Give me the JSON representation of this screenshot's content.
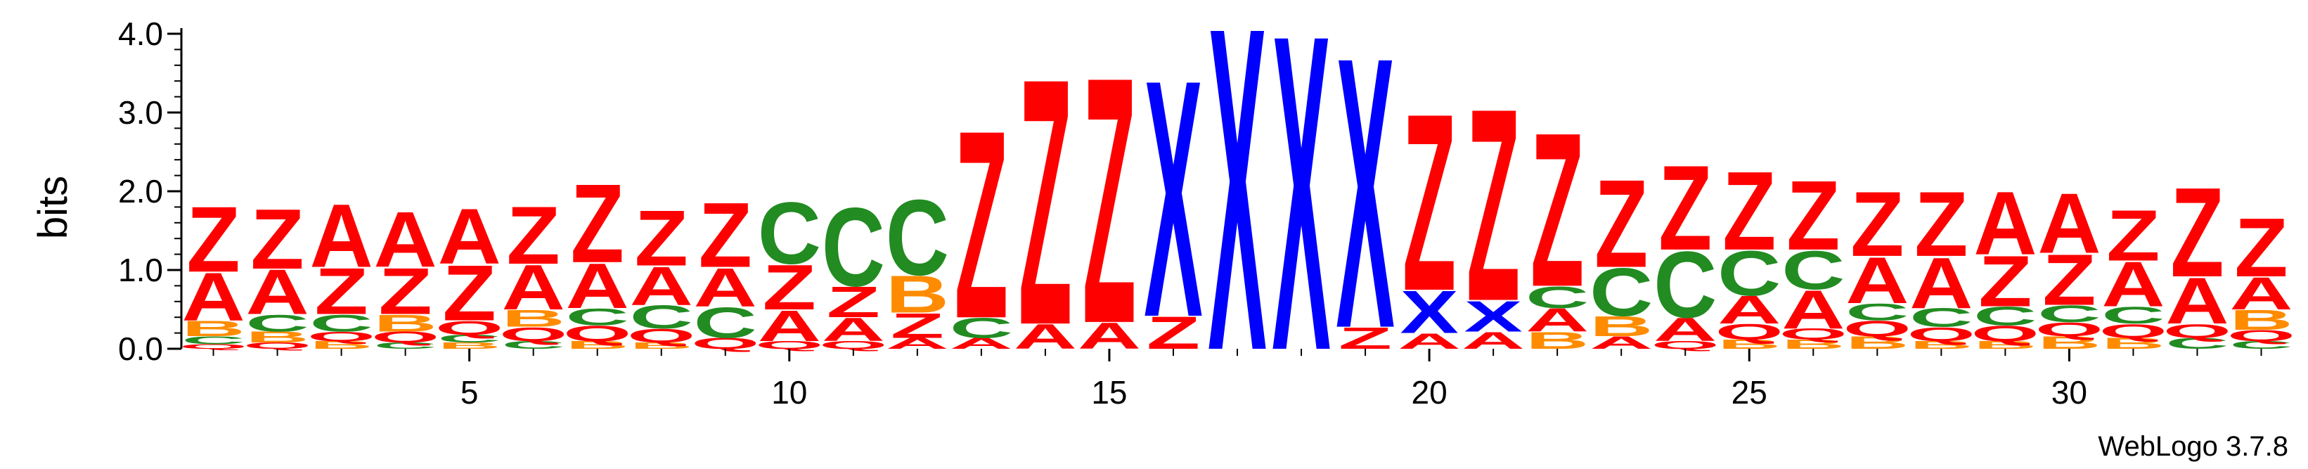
{
  "chart_data": {
    "type": "sequence-logo",
    "ylabel": "bits",
    "ylim": [
      0,
      4
    ],
    "y_ticks": [
      "0.0",
      "1.0",
      "2.0",
      "3.0",
      "4.0"
    ],
    "x_ticks": [
      5,
      10,
      15,
      20,
      25,
      30
    ],
    "xlim": [
      0.5,
      33.5
    ],
    "colors": {
      "Z": "#ff0000",
      "A": "#ff0000",
      "X": "#0000ff",
      "C": "#228b22",
      "B": "#ff8c00",
      "Q": "#ff0000",
      "G": "#228b22"
    },
    "columns": [
      {
        "position": 1,
        "stack": [
          [
            "Q",
            0.06
          ],
          [
            "C",
            0.1
          ],
          [
            "B",
            0.2
          ],
          [
            "A",
            0.62
          ],
          [
            "Z",
            0.85
          ]
        ]
      },
      {
        "position": 2,
        "stack": [
          [
            "Q",
            0.08
          ],
          [
            "B",
            0.14
          ],
          [
            "C",
            0.22
          ],
          [
            "A",
            0.58
          ],
          [
            "Z",
            0.78
          ]
        ]
      },
      {
        "position": 3,
        "stack": [
          [
            "B",
            0.1
          ],
          [
            "Q",
            0.12
          ],
          [
            "C",
            0.22
          ],
          [
            "Z",
            0.6
          ],
          [
            "A",
            0.82
          ]
        ]
      },
      {
        "position": 4,
        "stack": [
          [
            "C",
            0.08
          ],
          [
            "Q",
            0.14
          ],
          [
            "B",
            0.22
          ],
          [
            "Z",
            0.6
          ],
          [
            "A",
            0.72
          ]
        ]
      },
      {
        "position": 5,
        "stack": [
          [
            "B",
            0.08
          ],
          [
            "C",
            0.1
          ],
          [
            "Q",
            0.18
          ],
          [
            "Z",
            0.72
          ],
          [
            "A",
            0.72
          ]
        ]
      },
      {
        "position": 6,
        "stack": [
          [
            "C",
            0.1
          ],
          [
            "Q",
            0.18
          ],
          [
            "B",
            0.22
          ],
          [
            "A",
            0.58
          ],
          [
            "Z",
            0.75
          ]
        ]
      },
      {
        "position": 7,
        "stack": [
          [
            "B",
            0.1
          ],
          [
            "Q",
            0.2
          ],
          [
            "C",
            0.22
          ],
          [
            "A",
            0.58
          ],
          [
            "Z",
            1.02
          ]
        ]
      },
      {
        "position": 8,
        "stack": [
          [
            "B",
            0.08
          ],
          [
            "Q",
            0.18
          ],
          [
            "C",
            0.3
          ],
          [
            "A",
            0.5
          ],
          [
            "Z",
            0.72
          ]
        ]
      },
      {
        "position": 9,
        "stack": [
          [
            "Q",
            0.14
          ],
          [
            "C",
            0.4
          ],
          [
            "A",
            0.5
          ],
          [
            "Z",
            0.84
          ]
        ]
      },
      {
        "position": 10,
        "stack": [
          [
            "Q",
            0.1
          ],
          [
            "A",
            0.4
          ],
          [
            "Z",
            0.58
          ],
          [
            "C",
            0.8
          ]
        ]
      },
      {
        "position": 11,
        "stack": [
          [
            "Q",
            0.1
          ],
          [
            "A",
            0.3
          ],
          [
            "Z",
            0.4
          ],
          [
            "C",
            1.02
          ]
        ]
      },
      {
        "position": 12,
        "stack": [
          [
            "A",
            0.14
          ],
          [
            "Z",
            0.32
          ],
          [
            "B",
            0.48
          ],
          [
            "C",
            0.98
          ]
        ]
      },
      {
        "position": 13,
        "stack": [
          [
            "A",
            0.14
          ],
          [
            "C",
            0.26
          ],
          [
            "Z",
            2.44
          ]
        ]
      },
      {
        "position": 14,
        "stack": [
          [
            "A",
            0.32
          ],
          [
            "Z",
            3.2
          ]
        ]
      },
      {
        "position": 15,
        "stack": [
          [
            "A",
            0.34
          ],
          [
            "Z",
            3.2
          ]
        ]
      },
      {
        "position": 16,
        "stack": [
          [
            "Z",
            0.42
          ],
          [
            "X",
            3.08
          ]
        ]
      },
      {
        "position": 17,
        "stack": [
          [
            "X",
            4.2
          ]
        ]
      },
      {
        "position": 18,
        "stack": [
          [
            "X",
            4.1
          ]
        ]
      },
      {
        "position": 19,
        "stack": [
          [
            "Z",
            0.28
          ],
          [
            "X",
            3.52
          ]
        ]
      },
      {
        "position": 20,
        "stack": [
          [
            "A",
            0.2
          ],
          [
            "X",
            0.55
          ],
          [
            "Z",
            2.3
          ]
        ]
      },
      {
        "position": 21,
        "stack": [
          [
            "A",
            0.22
          ],
          [
            "X",
            0.4
          ],
          [
            "Z",
            2.5
          ]
        ]
      },
      {
        "position": 22,
        "stack": [
          [
            "B",
            0.22
          ],
          [
            "A",
            0.3
          ],
          [
            "C",
            0.28
          ],
          [
            "Z",
            2.0
          ]
        ]
      },
      {
        "position": 23,
        "stack": [
          [
            "A",
            0.16
          ],
          [
            "B",
            0.26
          ],
          [
            "C",
            0.62
          ],
          [
            "Z",
            1.14
          ]
        ]
      },
      {
        "position": 24,
        "stack": [
          [
            "Q",
            0.1
          ],
          [
            "A",
            0.3
          ],
          [
            "C",
            0.86
          ],
          [
            "Z",
            1.1
          ]
        ]
      },
      {
        "position": 25,
        "stack": [
          [
            "B",
            0.12
          ],
          [
            "Q",
            0.2
          ],
          [
            "A",
            0.36
          ],
          [
            "C",
            0.58
          ],
          [
            "Z",
            1.02
          ]
        ]
      },
      {
        "position": 26,
        "stack": [
          [
            "B",
            0.12
          ],
          [
            "Q",
            0.14
          ],
          [
            "A",
            0.5
          ],
          [
            "C",
            0.5
          ],
          [
            "Z",
            0.9
          ]
        ]
      },
      {
        "position": 27,
        "stack": [
          [
            "B",
            0.16
          ],
          [
            "Q",
            0.2
          ],
          [
            "C",
            0.22
          ],
          [
            "A",
            0.6
          ],
          [
            "Z",
            0.84
          ]
        ]
      },
      {
        "position": 28,
        "stack": [
          [
            "B",
            0.1
          ],
          [
            "Q",
            0.18
          ],
          [
            "C",
            0.24
          ],
          [
            "A",
            0.66
          ],
          [
            "Z",
            0.84
          ]
        ]
      },
      {
        "position": 29,
        "stack": [
          [
            "B",
            0.1
          ],
          [
            "Q",
            0.2
          ],
          [
            "C",
            0.24
          ],
          [
            "Z",
            0.66
          ],
          [
            "A",
            0.82
          ]
        ]
      },
      {
        "position": 30,
        "stack": [
          [
            "B",
            0.16
          ],
          [
            "Q",
            0.18
          ],
          [
            "C",
            0.22
          ],
          [
            "Z",
            0.66
          ],
          [
            "A",
            0.78
          ]
        ]
      },
      {
        "position": 31,
        "stack": [
          [
            "B",
            0.14
          ],
          [
            "Q",
            0.18
          ],
          [
            "C",
            0.22
          ],
          [
            "A",
            0.58
          ],
          [
            "Z",
            0.66
          ]
        ]
      },
      {
        "position": 32,
        "stack": [
          [
            "C",
            0.14
          ],
          [
            "Q",
            0.18
          ],
          [
            "A",
            0.6
          ],
          [
            "Z",
            1.16
          ]
        ]
      },
      {
        "position": 33,
        "stack": [
          [
            "C",
            0.1
          ],
          [
            "Q",
            0.14
          ],
          [
            "B",
            0.26
          ],
          [
            "A",
            0.42
          ],
          [
            "Z",
            0.76
          ]
        ]
      }
    ]
  },
  "footer": "WebLogo 3.7.8"
}
